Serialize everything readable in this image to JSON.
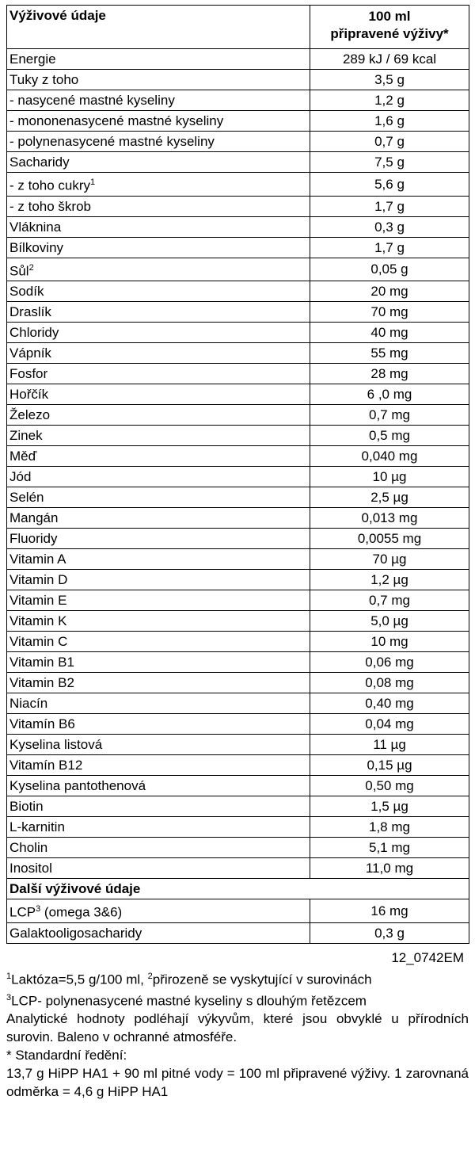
{
  "table": {
    "header": {
      "col1": "Výživové údaje",
      "col2_line1": "100 ml",
      "col2_line2": "připravené výživy*"
    },
    "rows": [
      {
        "label": "Energie",
        "sup": "",
        "value": "289 kJ / 69 kcal"
      },
      {
        "label": "Tuky z toho",
        "sup": "",
        "value": "3,5 g"
      },
      {
        "label": "- nasycené mastné kyseliny",
        "sup": "",
        "value": "1,2 g"
      },
      {
        "label": "- mononenasycené mastné kyseliny",
        "sup": "",
        "value": "1,6 g"
      },
      {
        "label": "- polynenasycené mastné kyseliny",
        "sup": "",
        "value": "0,7 g"
      },
      {
        "label": "Sacharidy",
        "sup": "",
        "value": "7,5 g"
      },
      {
        "label": "- z toho cukry",
        "sup": "1",
        "value": "5,6 g"
      },
      {
        "label": "- z toho škrob",
        "sup": "",
        "value": "1,7 g"
      },
      {
        "label": "Vláknina",
        "sup": "",
        "value": "0,3 g"
      },
      {
        "label": "Bílkoviny",
        "sup": "",
        "value": "1,7 g"
      },
      {
        "label": "Sůl",
        "sup": "2",
        "value": "0,05 g"
      },
      {
        "label": "Sodík",
        "sup": "",
        "value": "20 mg"
      },
      {
        "label": "Draslík",
        "sup": "",
        "value": "70 mg"
      },
      {
        "label": "Chloridy",
        "sup": "",
        "value": "40 mg"
      },
      {
        "label": "Vápník",
        "sup": "",
        "value": "55 mg"
      },
      {
        "label": "Fosfor",
        "sup": "",
        "value": "28 mg"
      },
      {
        "label": "Hořčík",
        "sup": "",
        "value": "6 ,0 mg"
      },
      {
        "label": "Železo",
        "sup": "",
        "value": "0,7 mg"
      },
      {
        "label": "Zinek",
        "sup": "",
        "value": "0,5 mg"
      },
      {
        "label": "Měď",
        "sup": "",
        "value": "0,040 mg"
      },
      {
        "label": "Jód",
        "sup": "",
        "value": "10 µg"
      },
      {
        "label": "Selén",
        "sup": "",
        "value": "2,5 µg"
      },
      {
        "label": "Mangán",
        "sup": "",
        "value": "0,013 mg"
      },
      {
        "label": "Fluoridy",
        "sup": "",
        "value": "0,0055 mg"
      },
      {
        "label": "Vitamin A",
        "sup": "",
        "value": "70 µg"
      },
      {
        "label": "Vitamin D",
        "sup": "",
        "value": "1,2 µg"
      },
      {
        "label": "Vitamin E",
        "sup": "",
        "value": "0,7 mg"
      },
      {
        "label": "Vitamin K",
        "sup": "",
        "value": "5,0 µg"
      },
      {
        "label": "Vitamin C",
        "sup": "",
        "value": "10 mg"
      },
      {
        "label": "Vitamin B1",
        "sup": "",
        "value": "0,06 mg"
      },
      {
        "label": "Vitamin B2",
        "sup": "",
        "value": "0,08 mg"
      },
      {
        "label": "Niacín",
        "sup": "",
        "value": "0,40 mg"
      },
      {
        "label": "Vitamín B6",
        "sup": "",
        "value": "0,04 mg"
      },
      {
        "label": "Kyselina listová",
        "sup": "",
        "value": "11 µg"
      },
      {
        "label": "Vitamín B12",
        "sup": "",
        "value": "0,15 µg"
      },
      {
        "label": "Kyselina pantothenová",
        "sup": "",
        "value": "0,50 mg"
      },
      {
        "label": "Biotin",
        "sup": "",
        "value": "1,5 µg"
      },
      {
        "label": "L-karnitin",
        "sup": "",
        "value": "1,8 mg"
      },
      {
        "label": "Cholin",
        "sup": "",
        "value": "5,1 mg"
      },
      {
        "label": "Inositol",
        "sup": "",
        "value": "11,0 mg"
      }
    ],
    "section2_title": "Další výživové údaje",
    "rows2": [
      {
        "label": "LCP",
        "sup": "3",
        "label_rest": " (omega 3&6)",
        "value": "16 mg"
      },
      {
        "label": "Galaktooligosacharidy",
        "sup": "",
        "label_rest": "",
        "value": "0,3 g"
      }
    ]
  },
  "code": "12_0742EM",
  "footnotes": {
    "line1_sup1": "1",
    "line1_a": "Laktóza=5,5 g/100 ml, ",
    "line1_sup2": "2",
    "line1_b": "přirozeně se vyskytující v surovinách",
    "line2_sup": "3",
    "line2": "LCP- polynenasycené mastné kyseliny s dlouhým řetězcem",
    "analytic": "Analytické hodnoty podléhají výkyvům, které jsou obvyklé u přírodních surovin. Baleno v ochranné atmosféře.",
    "dilution_title": "* Standardní ředění:",
    "dilution_text": "13,7 g HiPP HA1 + 90 ml pitné vody = 100 ml připravené výživy. 1 zarovnaná odměrka = 4,6 g HiPP HA1"
  }
}
